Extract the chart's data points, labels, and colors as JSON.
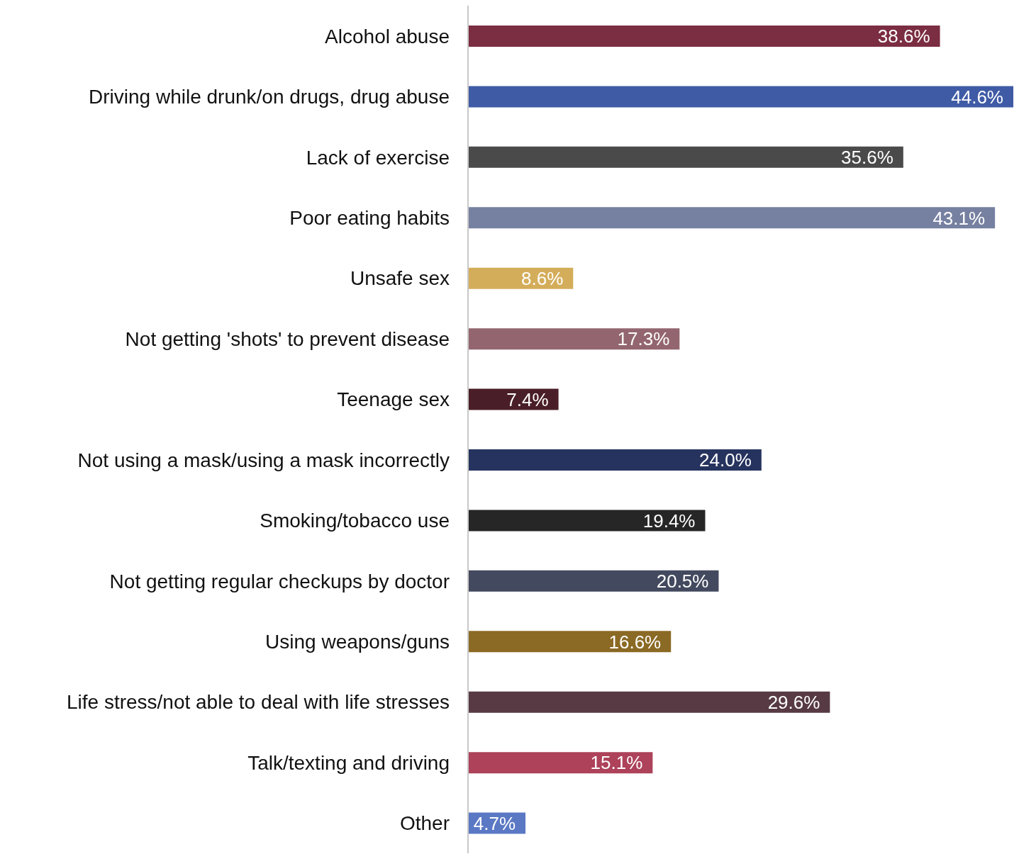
{
  "chart_data": {
    "type": "bar",
    "orientation": "horizontal",
    "categories": [
      "Alcohol abuse",
      "Driving while drunk/on drugs, drug abuse",
      "Lack of exercise",
      "Poor eating habits",
      "Unsafe sex",
      "Not getting 'shots' to prevent disease",
      "Teenage sex",
      "Not using a mask/using a mask incorrectly",
      "Smoking/tobacco use",
      "Not getting regular checkups by doctor",
      "Using weapons/guns",
      "Life stress/not able to deal with life stresses",
      "Talk/texting and driving",
      "Other"
    ],
    "values": [
      38.6,
      44.6,
      35.6,
      43.1,
      8.6,
      17.3,
      7.4,
      24.0,
      19.4,
      20.5,
      16.6,
      29.6,
      15.1,
      4.7
    ],
    "value_labels": [
      "38.6%",
      "44.6%",
      "35.6%",
      "43.1%",
      "8.6%",
      "17.3%",
      "7.4%",
      "24.0%",
      "19.4%",
      "20.5%",
      "16.6%",
      "29.6%",
      "15.1%",
      "4.7%"
    ],
    "colors": [
      "#7b2d42",
      "#3f5ba5",
      "#4a4a4a",
      "#7680a0",
      "#d4ad5a",
      "#93666f",
      "#4a1e28",
      "#26335e",
      "#262626",
      "#434a5f",
      "#8b6a25",
      "#573a44",
      "#ad425a",
      "#5a78c4"
    ],
    "grid": false,
    "legend": false
  }
}
